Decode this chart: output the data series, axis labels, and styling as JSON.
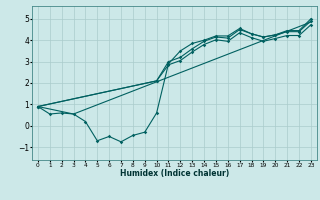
{
  "xlabel": "Humidex (Indice chaleur)",
  "bg_color": "#cce8e8",
  "grid_color": "#aacccc",
  "line_color": "#006060",
  "xlim": [
    -0.5,
    23.5
  ],
  "ylim": [
    -1.6,
    5.6
  ],
  "xticks": [
    0,
    1,
    2,
    3,
    4,
    5,
    6,
    7,
    8,
    9,
    10,
    11,
    12,
    13,
    14,
    15,
    16,
    17,
    18,
    19,
    20,
    21,
    22,
    23
  ],
  "yticks": [
    -1,
    0,
    1,
    2,
    3,
    4,
    5
  ],
  "line1_x": [
    0,
    1,
    2,
    3,
    4,
    5,
    6,
    7,
    8,
    9,
    10,
    11,
    12,
    13,
    14,
    15,
    16,
    17,
    18,
    19,
    20,
    21,
    22,
    23
  ],
  "line1_y": [
    0.9,
    0.55,
    0.6,
    0.55,
    0.2,
    -0.7,
    -0.5,
    -0.75,
    -0.45,
    -0.3,
    0.6,
    2.9,
    3.5,
    3.85,
    4.0,
    4.2,
    4.2,
    4.55,
    4.3,
    4.15,
    4.25,
    4.45,
    4.45,
    5.0
  ],
  "line2_x": [
    0,
    10,
    11,
    12,
    13,
    14,
    15,
    16,
    17,
    18,
    19,
    20,
    21,
    22,
    23
  ],
  "line2_y": [
    0.9,
    2.1,
    3.0,
    3.2,
    3.6,
    3.95,
    4.15,
    4.1,
    4.5,
    4.3,
    4.15,
    4.25,
    4.4,
    4.4,
    4.9
  ],
  "line3_x": [
    0,
    10,
    11,
    12,
    13,
    14,
    15,
    16,
    17,
    18,
    19,
    20,
    21,
    22,
    23
  ],
  "line3_y": [
    0.9,
    2.1,
    2.85,
    3.05,
    3.45,
    3.8,
    4.02,
    3.95,
    4.35,
    4.12,
    3.95,
    4.08,
    4.22,
    4.22,
    4.72
  ],
  "line4_x": [
    0,
    3,
    23
  ],
  "line4_y": [
    0.9,
    0.55,
    4.85
  ]
}
